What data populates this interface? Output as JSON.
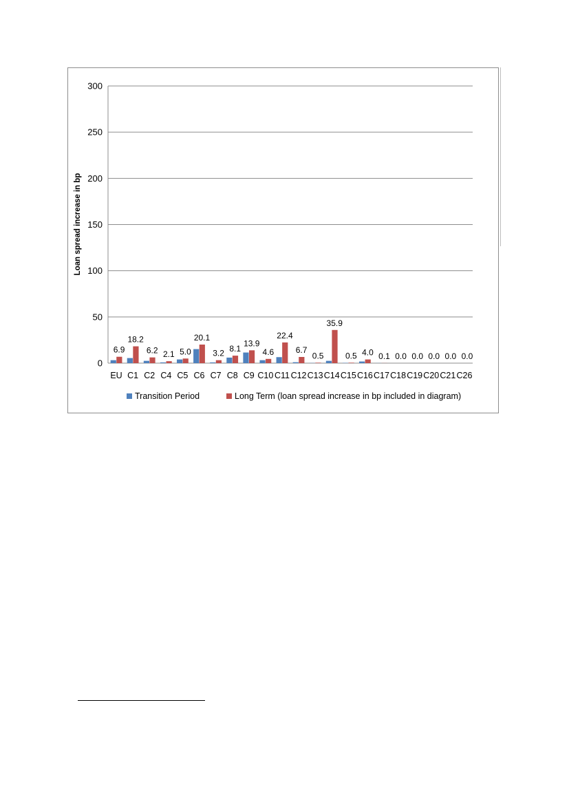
{
  "chart_data": {
    "type": "bar",
    "title": "",
    "xlabel": "",
    "ylabel": "Loan spread increase in bp",
    "ylim": [
      0,
      300
    ],
    "yticks": [
      0,
      50,
      100,
      150,
      200,
      250,
      300
    ],
    "grid": true,
    "legend_position": "bottom",
    "categories": [
      "EU",
      "C1",
      "C2",
      "C4",
      "C5",
      "C6",
      "C7",
      "C8",
      "C9",
      "C10",
      "C11",
      "C12",
      "C13",
      "C14",
      "C15",
      "C16",
      "C17",
      "C18",
      "C19",
      "C20",
      "C21",
      "C26"
    ],
    "series": [
      {
        "name": "Transition Period",
        "color": "#4f81bd",
        "values": [
          3.2,
          5.5,
          2.5,
          0.8,
          4.0,
          15.2,
          0.8,
          6.0,
          11.5,
          3.2,
          6.5,
          1.0,
          0.2,
          2.5,
          0.3,
          1.8,
          0.1,
          0,
          0,
          0,
          0,
          0
        ]
      },
      {
        "name": "Long Term (loan spread increase in bp included in diagram)",
        "color": "#c0504d",
        "values": [
          6.9,
          18.2,
          6.2,
          2.1,
          5.0,
          20.1,
          3.2,
          8.1,
          13.9,
          4.6,
          22.4,
          6.7,
          0.5,
          35.9,
          0.5,
          4.0,
          0.1,
          0.0,
          0.0,
          0.0,
          0.0,
          0.0
        ]
      }
    ],
    "data_labels": [
      "6.9",
      "18.2",
      "6.2",
      "2.1",
      "5.0",
      "20.1",
      "3.2",
      "8.1",
      "13.9",
      "4.6",
      "22.4",
      "6.7",
      "0.5",
      "35.9",
      "0.5",
      "4.0",
      "0.1",
      "0.0",
      "0.0",
      "0.0",
      "0.0",
      "0.0"
    ]
  }
}
